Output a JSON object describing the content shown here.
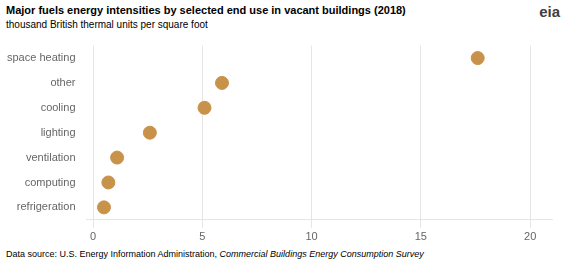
{
  "chart_data": {
    "type": "scatter",
    "title": "Major fuels energy intensities by selected end use in vacant buildings (2018)",
    "subtitle": "thousand British thermal units per square foot",
    "footer": "Data source: U.S. Energy Information Administration, ",
    "footer_italic": "Commercial Buildings Energy Consumption Survey",
    "annotations": [
      "eia"
    ],
    "categories": [
      "space heating",
      "other",
      "cooling",
      "lighting",
      "ventilation",
      "computing",
      "refrigeration"
    ],
    "values": [
      17.6,
      5.9,
      5.1,
      2.6,
      1.1,
      0.7,
      0.5
    ],
    "color": "#C8924A",
    "marker": "circle",
    "xlim": [
      -0.3,
      21
    ],
    "xticks": [
      0,
      5,
      10,
      15,
      20
    ],
    "grid": "x"
  }
}
